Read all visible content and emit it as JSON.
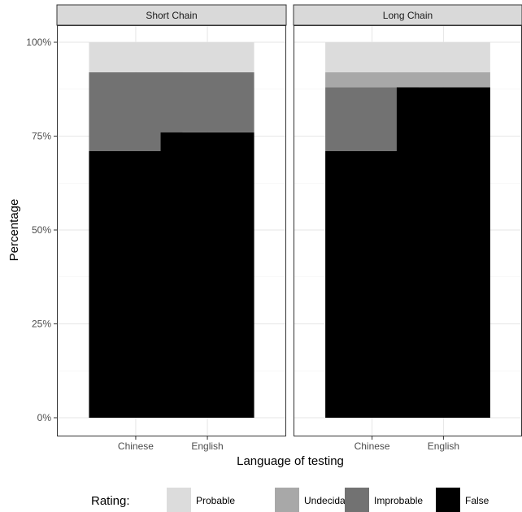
{
  "chart_data": {
    "type": "bar",
    "stacked": true,
    "xlabel": "Language of testing",
    "ylabel": "Percentage",
    "ylim": [
      0,
      100
    ],
    "yticks": [
      {
        "value": 0,
        "label": "0%"
      },
      {
        "value": 25,
        "label": "25%"
      },
      {
        "value": 50,
        "label": "50%"
      },
      {
        "value": 75,
        "label": "75%"
      },
      {
        "value": 100,
        "label": "100%"
      }
    ],
    "categories": [
      "Chinese",
      "English"
    ],
    "grid": true,
    "legend_position": "bottom",
    "legend_title": "Rating:",
    "series": [
      {
        "name": "Probable",
        "color": "#dcdcdc"
      },
      {
        "name": "Undecidable",
        "color": "#a8a8a8"
      },
      {
        "name": "Improbable",
        "color": "#727272"
      },
      {
        "name": "False",
        "color": "#000000"
      }
    ],
    "stack_order_bottom_to_top": [
      "False",
      "Improbable",
      "Undecidable",
      "Probable"
    ],
    "panels": [
      {
        "title": "Short Chain",
        "bars": [
          {
            "category": "Chinese",
            "values": {
              "False": 71,
              "Improbable": 21,
              "Undecidable": 0,
              "Probable": 8
            }
          },
          {
            "category": "English",
            "values": {
              "False": 76,
              "Improbable": 16,
              "Undecidable": 0,
              "Probable": 8
            }
          }
        ]
      },
      {
        "title": "Long Chain",
        "bars": [
          {
            "category": "Chinese",
            "values": {
              "False": 71,
              "Improbable": 17,
              "Undecidable": 4,
              "Probable": 8
            }
          },
          {
            "category": "English",
            "values": {
              "False": 88,
              "Improbable": 0,
              "Undecidable": 4,
              "Probable": 8
            }
          }
        ]
      }
    ]
  }
}
